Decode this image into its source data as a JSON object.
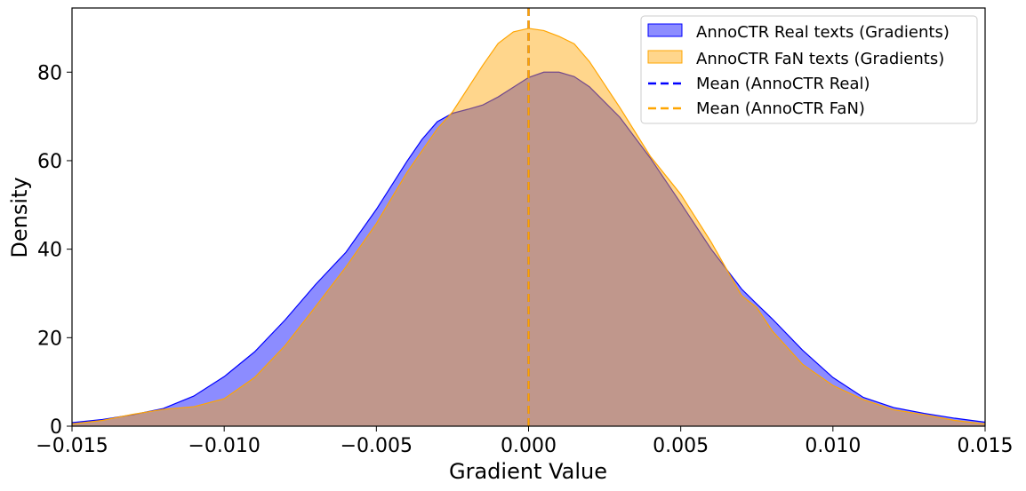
{
  "chart_data": {
    "type": "area",
    "title": "",
    "xlabel": "Gradient Value",
    "ylabel": "Density",
    "xlim": [
      -0.015,
      0.015
    ],
    "ylim": [
      0,
      94.5
    ],
    "grid": false,
    "legend_position": "top-right",
    "x_ticks": [
      -0.015,
      -0.01,
      -0.005,
      0.0,
      0.005,
      0.01,
      0.015
    ],
    "x_tick_labels": [
      "−0.015",
      "−0.010",
      "−0.005",
      "0.000",
      "0.005",
      "0.010",
      "0.015"
    ],
    "y_ticks": [
      0,
      20,
      40,
      60,
      80
    ],
    "y_tick_labels": [
      "0",
      "20",
      "40",
      "60",
      "80"
    ],
    "series": [
      {
        "name": "AnnoCTR Real texts (Gradients)",
        "kind": "density",
        "fill_color": "#0000ff",
        "fill_alpha": 0.45,
        "line_color": "#0000ff",
        "points": [
          [
            -0.015,
            0.8
          ],
          [
            -0.014,
            1.5
          ],
          [
            -0.013,
            2.6
          ],
          [
            -0.012,
            4.0
          ],
          [
            -0.011,
            6.8
          ],
          [
            -0.01,
            11.2
          ],
          [
            -0.009,
            16.8
          ],
          [
            -0.008,
            24.0
          ],
          [
            -0.007,
            32.0
          ],
          [
            -0.006,
            39.3
          ],
          [
            -0.005,
            49.0
          ],
          [
            -0.004,
            59.8
          ],
          [
            -0.0035,
            64.8
          ],
          [
            -0.003,
            68.8
          ],
          [
            -0.0025,
            70.7
          ],
          [
            -0.002,
            71.6
          ],
          [
            -0.0015,
            72.6
          ],
          [
            -0.001,
            74.4
          ],
          [
            -0.0005,
            76.6
          ],
          [
            0.0,
            78.8
          ],
          [
            0.0005,
            80.0
          ],
          [
            0.001,
            80.0
          ],
          [
            0.0015,
            79.0
          ],
          [
            0.002,
            76.7
          ],
          [
            0.003,
            69.8
          ],
          [
            0.004,
            60.6
          ],
          [
            0.005,
            50.4
          ],
          [
            0.006,
            40.0
          ],
          [
            0.007,
            31.0
          ],
          [
            0.0075,
            27.6
          ],
          [
            0.008,
            24.3
          ],
          [
            0.009,
            17.2
          ],
          [
            0.01,
            11.0
          ],
          [
            0.011,
            6.5
          ],
          [
            0.012,
            4.2
          ],
          [
            0.013,
            2.9
          ],
          [
            0.014,
            1.8
          ],
          [
            0.015,
            0.9
          ]
        ]
      },
      {
        "name": "AnnoCTR FaN texts (Gradients)",
        "kind": "density",
        "fill_color": "#ffa500",
        "fill_alpha": 0.45,
        "line_color": "#ffa500",
        "points": [
          [
            -0.015,
            0.5
          ],
          [
            -0.014,
            1.3
          ],
          [
            -0.013,
            2.7
          ],
          [
            -0.012,
            3.8
          ],
          [
            -0.011,
            4.4
          ],
          [
            -0.01,
            6.2
          ],
          [
            -0.009,
            11.0
          ],
          [
            -0.008,
            18.2
          ],
          [
            -0.007,
            27.0
          ],
          [
            -0.006,
            36.0
          ],
          [
            -0.005,
            45.8
          ],
          [
            -0.004,
            57.3
          ],
          [
            -0.003,
            67.2
          ],
          [
            -0.0025,
            71.0
          ],
          [
            -0.002,
            76.3
          ],
          [
            -0.0015,
            81.6
          ],
          [
            -0.001,
            86.5
          ],
          [
            -0.0005,
            89.1
          ],
          [
            0.0,
            89.9
          ],
          [
            0.0005,
            89.4
          ],
          [
            0.001,
            88.1
          ],
          [
            0.0015,
            86.4
          ],
          [
            0.002,
            82.4
          ],
          [
            0.003,
            72.0
          ],
          [
            0.004,
            61.0
          ],
          [
            0.005,
            52.4
          ],
          [
            0.006,
            41.6
          ],
          [
            0.007,
            29.5
          ],
          [
            0.0075,
            26.8
          ],
          [
            0.008,
            21.6
          ],
          [
            0.009,
            14.0
          ],
          [
            0.01,
            9.2
          ],
          [
            0.011,
            6.0
          ],
          [
            0.012,
            3.7
          ],
          [
            0.013,
            2.6
          ],
          [
            0.014,
            1.3
          ],
          [
            0.015,
            0.5
          ]
        ]
      },
      {
        "name": "Mean (AnnoCTR Real)",
        "kind": "vline",
        "x": 0.0,
        "line_color": "#0000ff",
        "dash": true
      },
      {
        "name": "Mean (AnnoCTR FaN)",
        "kind": "vline",
        "x": 0.0,
        "line_color": "#ffa500",
        "dash": true
      }
    ]
  }
}
